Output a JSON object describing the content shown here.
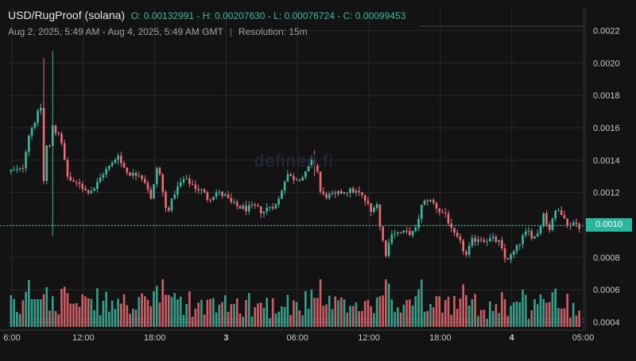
{
  "header": {
    "pair": "USD/RugProof (solana)",
    "ohlc": "O: 0.00132991 - H: 0.00207630 - L: 0.00076724 - C: 0.00099453",
    "range": "Aug 2, 2025, 5:49 AM - Aug 4, 2025, 5:49 AM GMT",
    "separator": "|",
    "resolution": "Resolution: 15m"
  },
  "watermark": "defined.fi",
  "current_price_label": "0.0010",
  "colors": {
    "background": "#131313",
    "grid": "#2a2a2a",
    "up": "#3ab8a0",
    "down": "#ef6b73",
    "price_line": "#2bb79d",
    "axis_text": "#c8c8c8"
  },
  "chart_data": {
    "type": "candlestick",
    "title": "USD/RugProof (solana)",
    "resolution": "15m",
    "y_axis": {
      "ylim": [
        0.00037,
        0.00234
      ],
      "ticks": [
        0.0004,
        0.0006,
        0.0008,
        0.001,
        0.0012,
        0.0014,
        0.0016,
        0.0018,
        0.002,
        0.0022
      ],
      "tick_labels": [
        "0.0004",
        "0.0006",
        "0.0008",
        "0.0010",
        "0.0012",
        "0.0014",
        "0.0016",
        "0.0018",
        "0.0020",
        "0.0022"
      ]
    },
    "x_axis": {
      "range_hours": [
        0,
        48.3
      ],
      "ticks": [
        {
          "hour": 0.2,
          "label": "6:00",
          "bold": false
        },
        {
          "hour": 6.2,
          "label": "12:00",
          "bold": false
        },
        {
          "hour": 12.2,
          "label": "18:00",
          "bold": false
        },
        {
          "hour": 18.2,
          "label": "3",
          "bold": true
        },
        {
          "hour": 24.2,
          "label": "06:00",
          "bold": false
        },
        {
          "hour": 30.2,
          "label": "12:00",
          "bold": false
        },
        {
          "hour": 36.2,
          "label": "18:00",
          "bold": false
        },
        {
          "hour": 42.2,
          "label": "4",
          "bold": true
        },
        {
          "hour": 48.2,
          "label": "05:00",
          "bold": false
        }
      ]
    },
    "current_price": 0.00099453,
    "volume_scale_max": 1.0,
    "price_anchors": [
      [
        0.0,
        0.00133
      ],
      [
        1.2,
        0.00134
      ],
      [
        1.7,
        0.00155
      ],
      [
        2.4,
        0.00167
      ],
      [
        2.9,
        0.00175
      ],
      [
        3.0,
        0.00127
      ],
      [
        3.3,
        0.00153
      ],
      [
        3.5,
        0.00148
      ],
      [
        3.7,
        0.00163
      ],
      [
        3.9,
        0.00158
      ],
      [
        4.3,
        0.00157
      ],
      [
        5.0,
        0.0013
      ],
      [
        5.5,
        0.00125
      ],
      [
        6.0,
        0.00126
      ],
      [
        6.5,
        0.00121
      ],
      [
        7.2,
        0.00122
      ],
      [
        8.0,
        0.00132
      ],
      [
        8.8,
        0.00138
      ],
      [
        9.3,
        0.00145
      ],
      [
        9.5,
        0.00138
      ],
      [
        10.0,
        0.00133
      ],
      [
        10.5,
        0.00131
      ],
      [
        11.0,
        0.00132
      ],
      [
        11.5,
        0.00127
      ],
      [
        11.9,
        0.0012
      ],
      [
        12.1,
        0.00111
      ],
      [
        12.4,
        0.00137
      ],
      [
        12.8,
        0.0013
      ],
      [
        13.2,
        0.0011
      ],
      [
        13.6,
        0.00111
      ],
      [
        14.0,
        0.0012
      ],
      [
        14.7,
        0.00128
      ],
      [
        15.3,
        0.00126
      ],
      [
        15.8,
        0.00123
      ],
      [
        16.3,
        0.00121
      ],
      [
        16.8,
        0.00116
      ],
      [
        17.5,
        0.0012
      ],
      [
        18.2,
        0.00118
      ],
      [
        18.8,
        0.00113
      ],
      [
        19.4,
        0.00111
      ],
      [
        20.0,
        0.0011
      ],
      [
        20.7,
        0.00111
      ],
      [
        21.4,
        0.00108
      ],
      [
        22.1,
        0.00112
      ],
      [
        22.6,
        0.00112
      ],
      [
        23.4,
        0.00132
      ],
      [
        23.8,
        0.00129
      ],
      [
        24.3,
        0.00129
      ],
      [
        24.9,
        0.0013
      ],
      [
        25.6,
        0.0014
      ],
      [
        26.0,
        0.00133
      ],
      [
        26.3,
        0.00118
      ],
      [
        26.8,
        0.00118
      ],
      [
        27.5,
        0.00118
      ],
      [
        28.2,
        0.00121
      ],
      [
        29.0,
        0.00121
      ],
      [
        29.6,
        0.00119
      ],
      [
        30.2,
        0.00113
      ],
      [
        30.6,
        0.00106
      ],
      [
        30.9,
        0.00119
      ],
      [
        31.3,
        0.00096
      ],
      [
        31.8,
        0.00081
      ],
      [
        32.2,
        0.00096
      ],
      [
        32.8,
        0.00095
      ],
      [
        33.6,
        0.00095
      ],
      [
        34.2,
        0.00095
      ],
      [
        34.7,
        0.00111
      ],
      [
        35.2,
        0.00116
      ],
      [
        35.8,
        0.00113
      ],
      [
        36.3,
        0.00108
      ],
      [
        36.8,
        0.00107
      ],
      [
        37.3,
        0.00095
      ],
      [
        37.9,
        0.0009
      ],
      [
        38.5,
        0.00081
      ],
      [
        39.0,
        0.0009
      ],
      [
        39.5,
        0.00092
      ],
      [
        40.2,
        0.00091
      ],
      [
        40.8,
        0.00091
      ],
      [
        41.3,
        0.00089
      ],
      [
        41.7,
        0.00079
      ],
      [
        42.2,
        0.0008
      ],
      [
        42.7,
        0.00085
      ],
      [
        43.2,
        0.00092
      ],
      [
        43.7,
        0.00096
      ],
      [
        44.2,
        0.00092
      ],
      [
        44.7,
        0.00098
      ],
      [
        45.0,
        0.00109
      ],
      [
        45.4,
        0.00095
      ],
      [
        45.8,
        0.00106
      ],
      [
        46.3,
        0.00109
      ],
      [
        46.7,
        0.00107
      ],
      [
        47.0,
        0.00099
      ],
      [
        47.4,
        0.00102
      ],
      [
        48.0,
        0.000995
      ]
    ],
    "spikes": [
      {
        "hour": 2.8,
        "high": 0.00203,
        "low": 0.00145
      },
      {
        "hour": 3.5,
        "high": 0.002076,
        "low": 0.00093
      },
      {
        "hour": 25.6,
        "high": 0.00146,
        "low": 0.0013
      }
    ]
  }
}
